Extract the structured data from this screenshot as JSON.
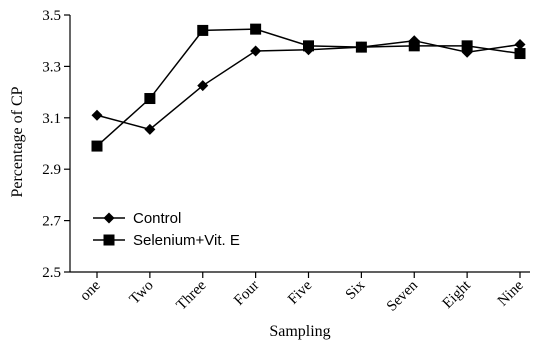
{
  "chart_data": {
    "type": "line",
    "categories": [
      "one",
      "Two",
      "Three",
      "Four",
      "Five",
      "Six",
      "Seven",
      "Eight",
      "Nine"
    ],
    "series": [
      {
        "name": "Control",
        "marker": "diamond",
        "values": [
          3.11,
          3.055,
          3.225,
          3.36,
          3.365,
          3.375,
          3.4,
          3.355,
          3.385
        ]
      },
      {
        "name": "Selenium+Vit. E",
        "marker": "square",
        "values": [
          2.99,
          3.175,
          3.44,
          3.445,
          3.38,
          3.375,
          3.38,
          3.38,
          3.35
        ]
      }
    ],
    "xlabel": "Sampling",
    "ylabel": "Percentage of CP",
    "ylim": [
      2.5,
      3.5
    ],
    "yticks": [
      "2.5",
      "2.7",
      "2.9",
      "3.1",
      "3.3",
      "3.5"
    ],
    "grid": false,
    "legend_position": "bottom-left",
    "colors": {
      "line": "#000000",
      "marker": "#000000"
    }
  }
}
